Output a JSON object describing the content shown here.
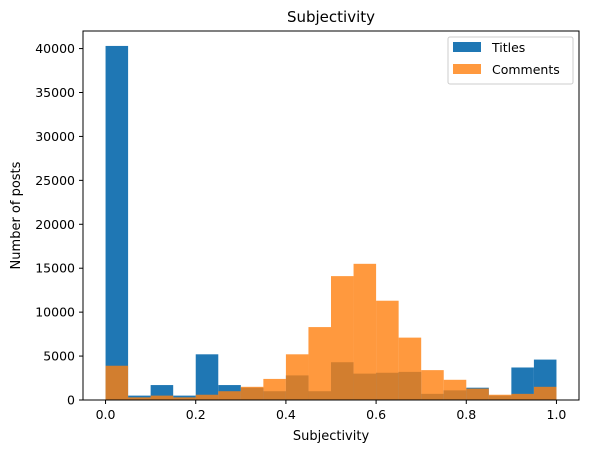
{
  "chart_data": {
    "type": "bar",
    "title": "Subjectivity",
    "xlabel": "Subjectivity",
    "ylabel": "Number of posts",
    "xlim": [
      -0.05,
      1.05
    ],
    "ylim": [
      0,
      42000
    ],
    "bin_edges": [
      0.0,
      0.05,
      0.1,
      0.15,
      0.2,
      0.25,
      0.3,
      0.35,
      0.4,
      0.45,
      0.5,
      0.55,
      0.6,
      0.65,
      0.7,
      0.75,
      0.8,
      0.85,
      0.9,
      0.95,
      1.0
    ],
    "x_ticks": [
      "0.0",
      "0.2",
      "0.4",
      "0.6",
      "0.8",
      "1.0"
    ],
    "y_ticks": [
      "0",
      "5000",
      "10000",
      "15000",
      "20000",
      "25000",
      "30000",
      "35000",
      "40000"
    ],
    "legend_position": "top-right",
    "series": [
      {
        "name": "Titles",
        "color": "#1f77b4",
        "values": [
          40300,
          500,
          1700,
          500,
          5200,
          1700,
          1400,
          1000,
          2800,
          1000,
          4300,
          3000,
          3100,
          3200,
          700,
          1100,
          1400,
          500,
          3700,
          4600
        ]
      },
      {
        "name": "Comments",
        "color": "#ff7f0e",
        "opacity": 0.8,
        "values": [
          3900,
          300,
          500,
          300,
          600,
          1000,
          1500,
          2400,
          5200,
          8300,
          14100,
          15500,
          11300,
          7100,
          3400,
          2300,
          1300,
          600,
          700,
          1500
        ]
      }
    ]
  }
}
